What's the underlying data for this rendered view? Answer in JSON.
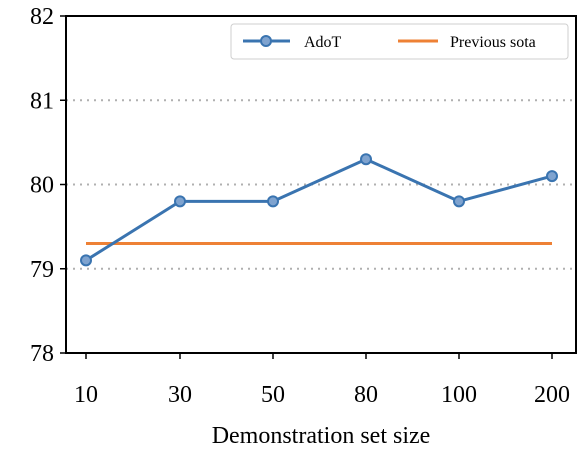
{
  "chart_data": {
    "type": "line",
    "categories": [
      "10",
      "30",
      "50",
      "80",
      "100",
      "200"
    ],
    "xlabel": "Demonstration set size",
    "ylabel": "",
    "ylim": [
      78,
      82
    ],
    "yticks": [
      "78",
      "79",
      "80",
      "81",
      "82"
    ],
    "grid": "horizontal dotted",
    "legend_position": "top-right",
    "series": [
      {
        "name": "AdoT",
        "values": [
          79.1,
          79.8,
          79.8,
          80.3,
          79.8,
          80.1
        ],
        "color": "#3a74b0",
        "marker": "circle"
      },
      {
        "name": "Previous sota",
        "values": [
          79.3,
          79.3,
          79.3,
          79.3,
          79.3,
          79.3
        ],
        "color": "#ee8135",
        "marker": "none"
      }
    ]
  }
}
